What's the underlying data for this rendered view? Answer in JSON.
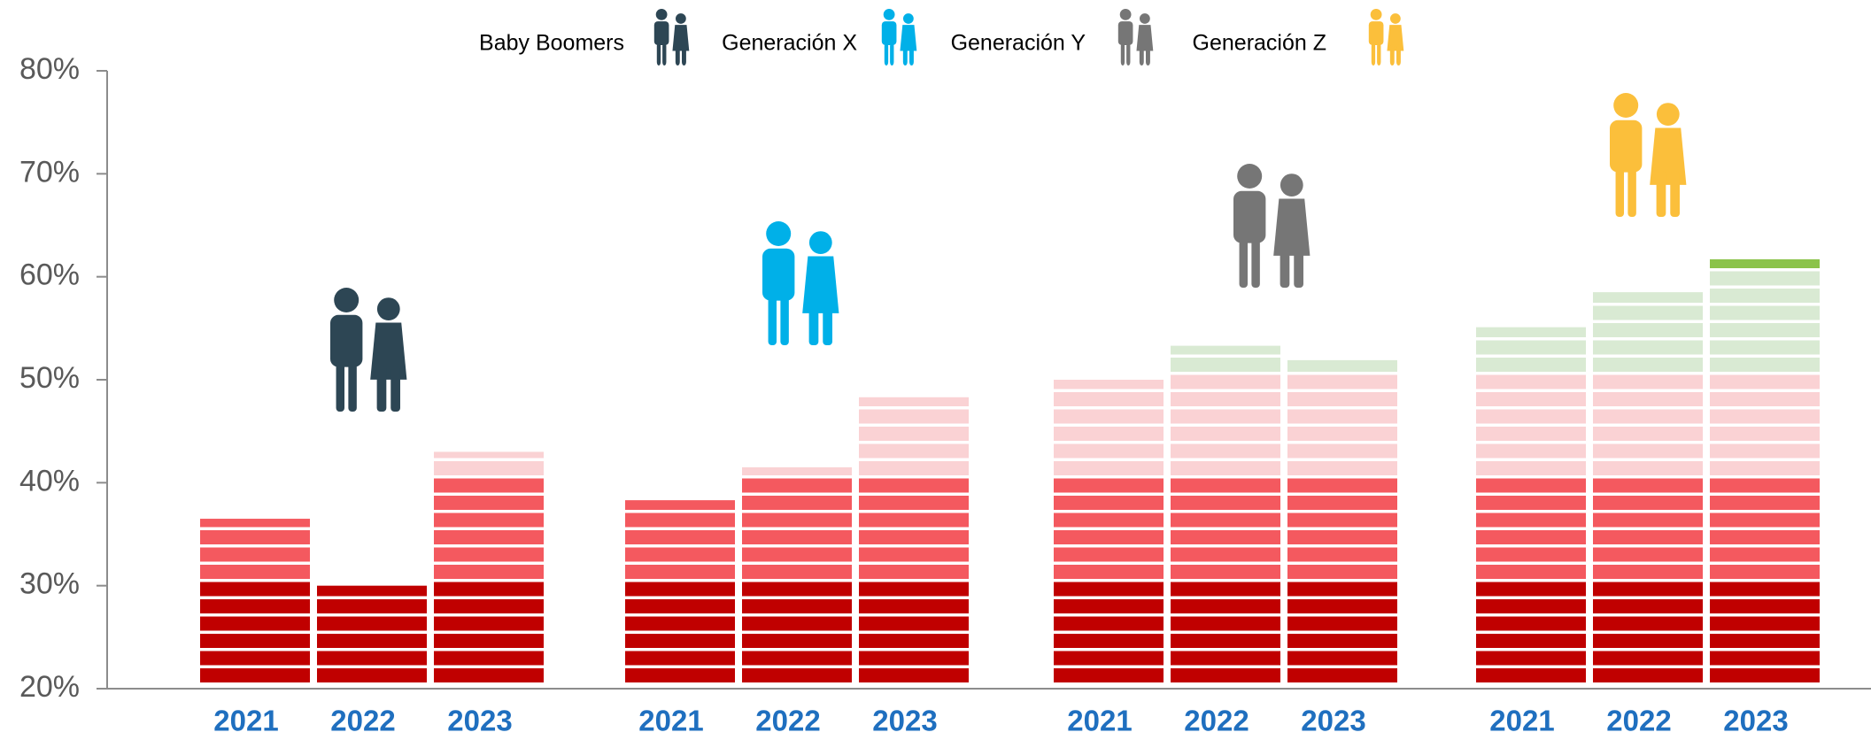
{
  "chart_data": {
    "type": "bar",
    "categories": [
      "2021",
      "2022",
      "2023"
    ],
    "series": [
      {
        "name": "Baby Boomers",
        "color": "#2d4654",
        "values": [
          36.5,
          30,
          43
        ]
      },
      {
        "name": "Generación X",
        "color": "#00b0e8",
        "values": [
          38.3,
          41.5,
          48.3
        ]
      },
      {
        "name": "Generación Y",
        "color": "#767676",
        "values": [
          50,
          53.3,
          51.9
        ]
      },
      {
        "name": "Generación Z",
        "color": "#fbbf3b",
        "values": [
          55.1,
          58.5,
          61.7
        ]
      }
    ],
    "ylim": [
      20,
      80
    ],
    "yticks": [
      {
        "value": 20,
        "label": "20%"
      },
      {
        "value": 30,
        "label": "30%"
      },
      {
        "value": 40,
        "label": "40%"
      },
      {
        "value": 50,
        "label": "50%"
      },
      {
        "value": 60,
        "label": "60%"
      },
      {
        "value": 70,
        "label": "70%"
      },
      {
        "value": 80,
        "label": "80%"
      }
    ],
    "band_colors": [
      "#c00000",
      "#f4595f",
      "#fad2d4",
      "#d9ead3",
      "#8bc34a",
      "#8bc34a"
    ],
    "legend": "top"
  }
}
